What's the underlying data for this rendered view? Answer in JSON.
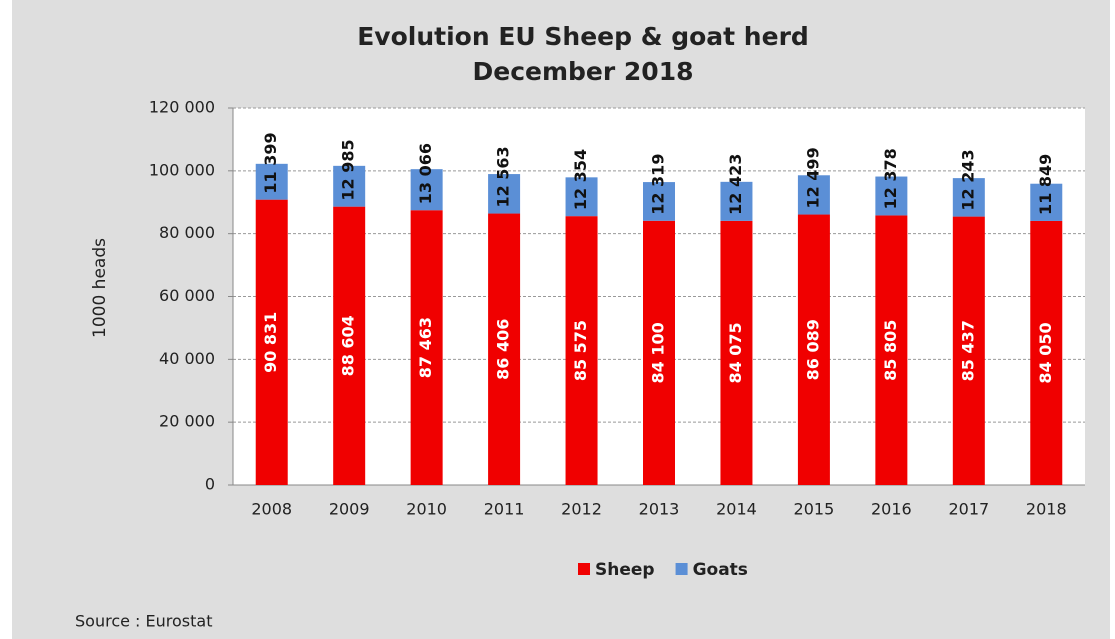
{
  "chart_data": {
    "type": "stacked-bar",
    "title": "Evolution EU Sheep & goat herd",
    "subtitle": "December 2018",
    "y_label": "1000 heads",
    "source": "Source : Eurostat",
    "categories": [
      "2008",
      "2009",
      "2010",
      "2011",
      "2012",
      "2013",
      "2014",
      "2015",
      "2016",
      "2017",
      "2018"
    ],
    "series": [
      {
        "name": "Sheep",
        "color": "#f00000",
        "values": [
          90831,
          88604,
          87463,
          86406,
          85575,
          84100,
          84075,
          86089,
          85805,
          85437,
          84050
        ],
        "value_labels": [
          "90 831",
          "88 604",
          "87 463",
          "86 406",
          "85 575",
          "84 100",
          "84 075",
          "86 089",
          "85 805",
          "85 437",
          "84 050"
        ]
      },
      {
        "name": "Goats",
        "color": "#5b8fd6",
        "values": [
          11399,
          12985,
          13066,
          12563,
          12354,
          12319,
          12423,
          12499,
          12378,
          12243,
          11849
        ],
        "value_labels": [
          "11 399",
          "12 985",
          "13 066",
          "12 563",
          "12 354",
          "12 319",
          "12 423",
          "12 499",
          "12 378",
          "12 243",
          "11 849"
        ]
      }
    ],
    "ylim": [
      0,
      120000
    ],
    "yticks": [
      0,
      {
        "value": 20000,
        "label": "20 000"
      },
      {
        "value": 40000,
        "label": "40 000"
      },
      {
        "value": 60000,
        "label": "60 000"
      },
      {
        "value": 80000,
        "label": "80 000"
      },
      {
        "value": 100000,
        "label": "100 000"
      },
      {
        "value": 120000,
        "label": "120 000"
      }
    ],
    "grid": true,
    "legend": "bottom"
  }
}
